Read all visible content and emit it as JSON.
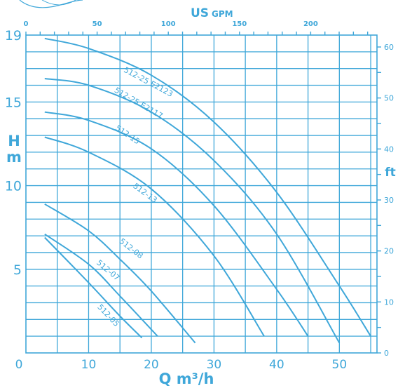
{
  "chart_data": {
    "type": "line",
    "title": "",
    "colors": {
      "ink": "#3fa7d9",
      "background": "#ffffff"
    },
    "x_axis": {
      "label": "Q m³/h",
      "range": [
        0,
        56
      ],
      "ticks": [
        0,
        10,
        20,
        30,
        40,
        50
      ],
      "tick_labels": [
        "0",
        "10",
        "20",
        "30",
        "40",
        "50"
      ]
    },
    "x_top_axis": {
      "label": "US GPM",
      "label_parts": [
        "US",
        "GPM"
      ],
      "ticks": [
        0,
        50,
        100,
        150,
        200
      ],
      "tick_labels": [
        "0",
        "50",
        "100",
        "150",
        "200"
      ]
    },
    "y_axis": {
      "label": "H m",
      "label_parts": [
        "H",
        "m"
      ],
      "range": [
        0,
        19
      ],
      "ticks": [
        5,
        10,
        15,
        19
      ],
      "tick_labels": [
        "5",
        "10",
        "15",
        "19"
      ]
    },
    "y_right_axis": {
      "label": "ft",
      "ticks": [
        0,
        10,
        20,
        30,
        40,
        50,
        60
      ],
      "tick_labels": [
        "0",
        "10",
        "20",
        "30",
        "40",
        "50",
        "60"
      ]
    },
    "grid": true,
    "series": [
      {
        "name": "512-25 E2123",
        "x": [
          3,
          10,
          20,
          30,
          40,
          50,
          55
        ],
        "y": [
          18.8,
          18.2,
          16.6,
          13.8,
          9.6,
          4.0,
          1.0
        ]
      },
      {
        "name": "512-25 E2117",
        "x": [
          3,
          10,
          20,
          30,
          40,
          50
        ],
        "y": [
          16.4,
          16.0,
          14.4,
          11.5,
          7.1,
          0.6
        ]
      },
      {
        "name": "512-15",
        "x": [
          3,
          10,
          20,
          30,
          40,
          45
        ],
        "y": [
          14.4,
          13.9,
          12.2,
          8.8,
          3.8,
          1.0
        ]
      },
      {
        "name": "512-13",
        "x": [
          3,
          10,
          20,
          30,
          38
        ],
        "y": [
          12.9,
          12.0,
          9.8,
          5.8,
          1.0
        ]
      },
      {
        "name": "512-08",
        "x": [
          3,
          10,
          15,
          20,
          27
        ],
        "y": [
          8.9,
          7.3,
          5.6,
          3.7,
          0.6
        ]
      },
      {
        "name": "512-07",
        "x": [
          3,
          10,
          15,
          21
        ],
        "y": [
          7.1,
          5.3,
          3.4,
          1.0
        ]
      },
      {
        "name": "512-05",
        "x": [
          3,
          10,
          15,
          18.5
        ],
        "y": [
          6.9,
          4.2,
          2.2,
          0.9
        ]
      }
    ]
  }
}
